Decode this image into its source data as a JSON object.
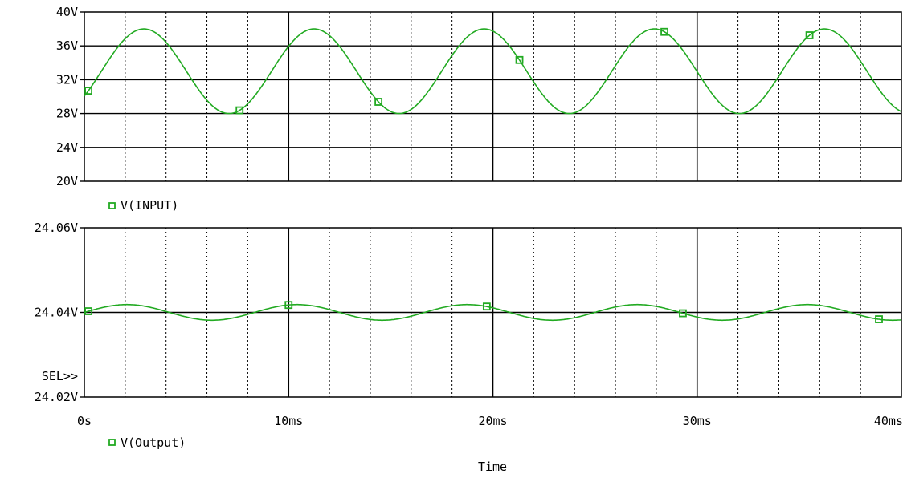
{
  "colors": {
    "trace": "#22aa22",
    "marker": "#22aa22",
    "axis": "#000000",
    "background": "#ffffff"
  },
  "x_axis": {
    "title": "Time",
    "tick_labels": [
      "0s",
      "10ms",
      "20ms",
      "30ms",
      "40ms"
    ]
  },
  "top_plot": {
    "tick_labels": [
      "20V",
      "24V",
      "28V",
      "32V",
      "36V",
      "40V"
    ],
    "legend_text": "V(INPUT)"
  },
  "bottom_plot": {
    "tick_labels": [
      "24.02V",
      "24.04V",
      "24.06V"
    ],
    "legend_text": "V(Output)",
    "sel_label": "SEL>>"
  },
  "chart_data": [
    {
      "type": "line",
      "series": [
        {
          "name": "V(INPUT)",
          "function": "sine",
          "offset": 33,
          "amplitude": 5,
          "period_ms": 8.33,
          "phase_deg": -36,
          "unit": "V",
          "marker_x": [
            0.2,
            7.6,
            14.4,
            21.3,
            28.4,
            35.5
          ]
        }
      ],
      "xlim": [
        0,
        40
      ],
      "ylim": [
        20,
        40
      ],
      "x_unit": "ms",
      "grid": "solid major every 10ms and 4V, dotted minor every 2ms"
    },
    {
      "type": "line",
      "series": [
        {
          "name": "V(Output)",
          "function": "sine",
          "offset": 24.04,
          "amplitude": 0.00185,
          "period_ms": 8.33,
          "phase_deg": 0,
          "unit": "V",
          "marker_x": [
            0.2,
            10.0,
            19.7,
            29.3,
            38.9
          ]
        }
      ],
      "xlim": [
        0,
        40
      ],
      "ylim": [
        24.02,
        24.06
      ],
      "x_unit": "ms",
      "grid": "solid major every 10ms and 0.02V, dotted minor every 2ms"
    }
  ]
}
